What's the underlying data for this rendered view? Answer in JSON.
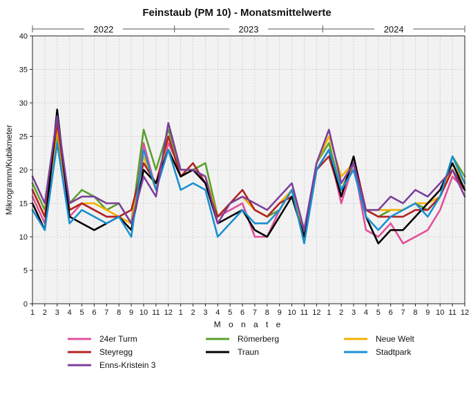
{
  "chart_data": {
    "type": "line",
    "title": "Feinstaub (PM 10) - Monatsmittelwerte",
    "xlabel": "M o n a t e",
    "ylabel": "Mikrogramm/Kubikmeter",
    "ylim": [
      0,
      40
    ],
    "yticks": [
      0,
      5,
      10,
      15,
      20,
      25,
      30,
      35,
      40
    ],
    "x": [
      "1",
      "2",
      "3",
      "4",
      "5",
      "6",
      "7",
      "8",
      "9",
      "10",
      "11",
      "12",
      "1",
      "2",
      "3",
      "4",
      "5",
      "6",
      "7",
      "8",
      "9",
      "10",
      "11",
      "12",
      "1",
      "2",
      "3",
      "4",
      "5",
      "6",
      "7",
      "8",
      "9",
      "10",
      "11",
      "12"
    ],
    "years": [
      "2022",
      "2023",
      "2024"
    ],
    "grid": true,
    "legend_position": "bottom",
    "series": [
      {
        "name": "24er Turm",
        "color": "#e0509a",
        "values": [
          16,
          12,
          25,
          13,
          15,
          14,
          13,
          13,
          12,
          24,
          17,
          24,
          20,
          20,
          18,
          13,
          14,
          15,
          10,
          10,
          14,
          17,
          10,
          20,
          23,
          15,
          21,
          11,
          10,
          12,
          9,
          10,
          11,
          14,
          19,
          17
        ]
      },
      {
        "name": "Römerberg",
        "color": "#5aa02c",
        "values": [
          18,
          14,
          25,
          15,
          17,
          16,
          14,
          15,
          12,
          26,
          20,
          26,
          20,
          20,
          21,
          13,
          15,
          16,
          14,
          13,
          14,
          17,
          10,
          21,
          24,
          17,
          21,
          14,
          13,
          14,
          14,
          15,
          14,
          16,
          22,
          19
        ]
      },
      {
        "name": "Neue Welt",
        "color": "#f5b000",
        "values": [
          17,
          13,
          26,
          14,
          15,
          15,
          14,
          13,
          12,
          22,
          17,
          25,
          19,
          20,
          19,
          13,
          15,
          16,
          14,
          13,
          15,
          17,
          10,
          21,
          25,
          19,
          21,
          14,
          14,
          14,
          14,
          15,
          15,
          16,
          21,
          18
        ]
      },
      {
        "name": "Steyregg",
        "color": "#b22222",
        "values": [
          17,
          13,
          27,
          14,
          15,
          14,
          13,
          13,
          14,
          21,
          18,
          25,
          19,
          21,
          18,
          13,
          15,
          17,
          14,
          13,
          15,
          16,
          10,
          20,
          22,
          16,
          22,
          14,
          13,
          13,
          13,
          14,
          14,
          16,
          20,
          17
        ]
      },
      {
        "name": "Traun",
        "color": "#000000",
        "values": [
          15,
          11,
          29,
          13,
          12,
          11,
          12,
          13,
          11,
          20,
          18,
          23,
          19,
          20,
          18,
          12,
          13,
          14,
          11,
          10,
          13,
          16,
          10,
          20,
          23,
          16,
          22,
          13,
          9,
          11,
          11,
          13,
          15,
          17,
          21,
          17
        ]
      },
      {
        "name": "Stadtpark",
        "color": "#1a8fd1",
        "values": [
          14,
          11,
          24,
          12,
          14,
          13,
          12,
          13,
          10,
          23,
          17,
          23,
          17,
          18,
          17,
          10,
          12,
          14,
          12,
          12,
          14,
          17,
          9,
          20,
          23,
          17,
          20,
          13,
          11,
          13,
          14,
          15,
          13,
          16,
          22,
          18
        ]
      },
      {
        "name": "Enns-Kristein 3",
        "color": "#7b3f9b",
        "values": [
          19,
          15,
          28,
          15,
          16,
          16,
          15,
          15,
          12,
          19,
          16,
          27,
          20,
          20,
          19,
          12,
          15,
          16,
          15,
          14,
          16,
          18,
          11,
          21,
          26,
          18,
          21,
          14,
          14,
          16,
          15,
          17,
          16,
          18,
          20,
          16
        ]
      }
    ]
  }
}
